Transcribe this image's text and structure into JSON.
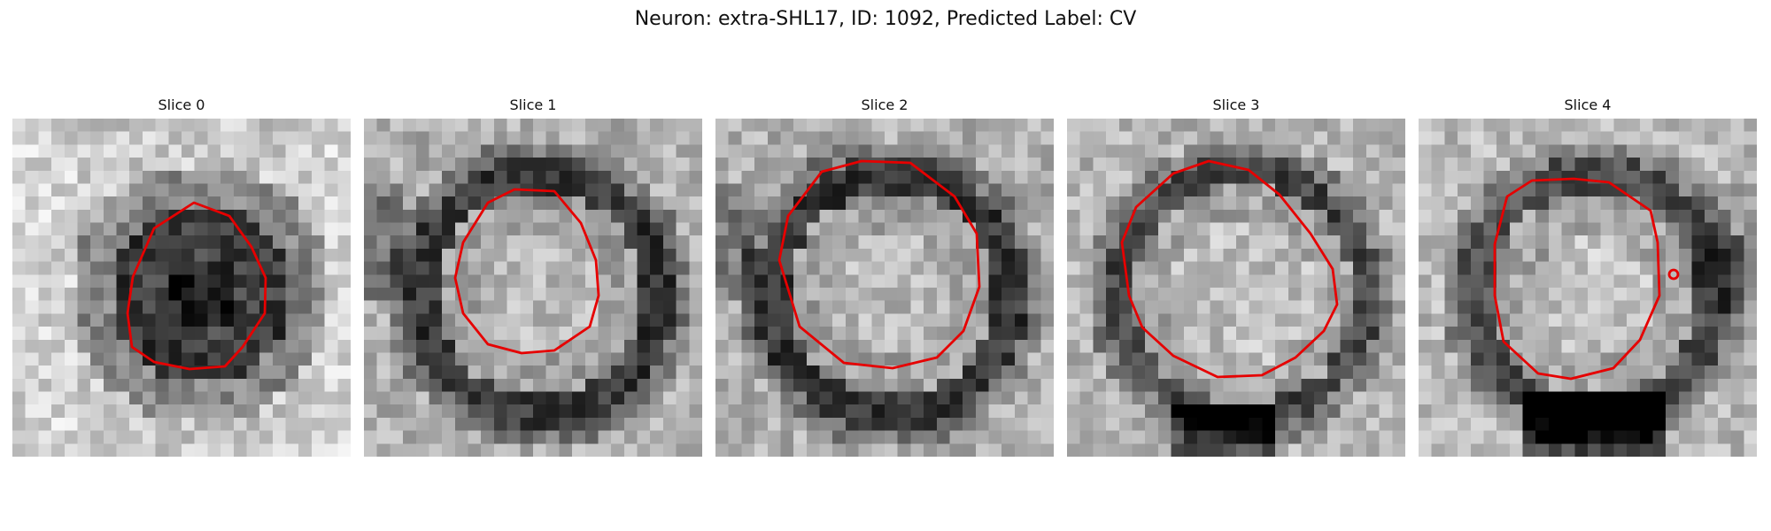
{
  "figure": {
    "title": "Neuron: extra-SHL17, ID: 1092, Predicted Label: CV",
    "panels": [
      {
        "title": "Slice 0",
        "pattern": "dark-blob"
      },
      {
        "title": "Slice 1",
        "pattern": "ring-bright-center"
      },
      {
        "title": "Slice 2",
        "pattern": "ring-bright-center"
      },
      {
        "title": "Slice 3",
        "pattern": "ring-bright-center-lower-dark"
      },
      {
        "title": "Slice 4",
        "pattern": "ring-bright-center-bottom-dark"
      }
    ]
  },
  "colors": {
    "contour": "#e60000",
    "background": "#ffffff",
    "colormap": "grayscale"
  }
}
